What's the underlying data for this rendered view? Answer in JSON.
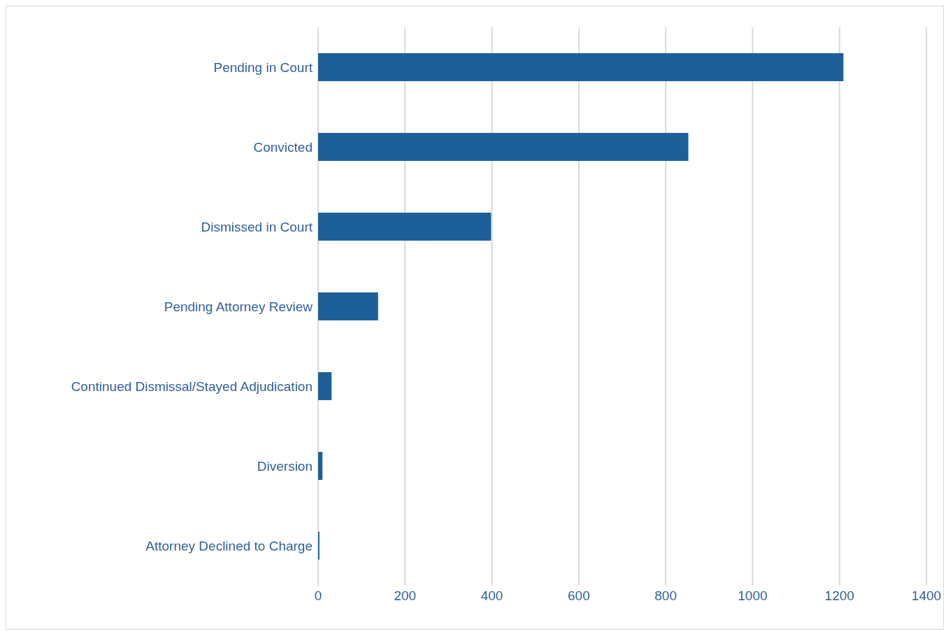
{
  "chart_data": {
    "type": "bar",
    "orientation": "horizontal",
    "categories": [
      "Pending in Court",
      "Convicted",
      "Dismissed in Court",
      "Pending Attorney Review",
      "Continued Dismissal/Stayed Adjudication",
      "Diversion",
      "Attorney Declined to Charge"
    ],
    "values": [
      1209,
      852,
      398,
      138,
      31,
      10,
      3
    ],
    "color": "#1f5f99",
    "xlim": [
      0,
      1400
    ],
    "xticks": [
      0,
      200,
      400,
      600,
      800,
      1000,
      1200,
      1400
    ],
    "grid": "x"
  }
}
